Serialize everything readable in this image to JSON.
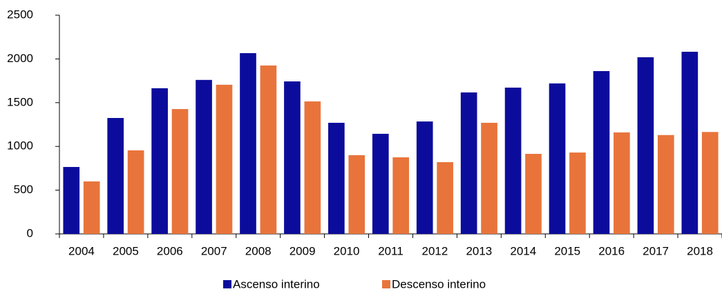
{
  "chart_data": {
    "type": "bar",
    "categories": [
      "2004",
      "2005",
      "2006",
      "2007",
      "2008",
      "2009",
      "2010",
      "2011",
      "2012",
      "2013",
      "2014",
      "2015",
      "2016",
      "2017",
      "2018"
    ],
    "series": [
      {
        "name": "Ascenso interino",
        "color": "#0c0c9c",
        "values": [
          765,
          1325,
          1665,
          1760,
          2066,
          1743,
          1270,
          1144,
          1285,
          1617,
          1672,
          1720,
          1861,
          2019,
          2082
        ]
      },
      {
        "name": "Descenso interino",
        "color": "#e8743b",
        "values": [
          600,
          955,
          1427,
          1705,
          1925,
          1514,
          900,
          875,
          820,
          1270,
          915,
          930,
          1160,
          1130,
          1165
        ]
      }
    ],
    "ylim": [
      0,
      2500
    ],
    "yticks": [
      0,
      500,
      1000,
      1500,
      2000,
      2500
    ],
    "legend": "bottom"
  }
}
